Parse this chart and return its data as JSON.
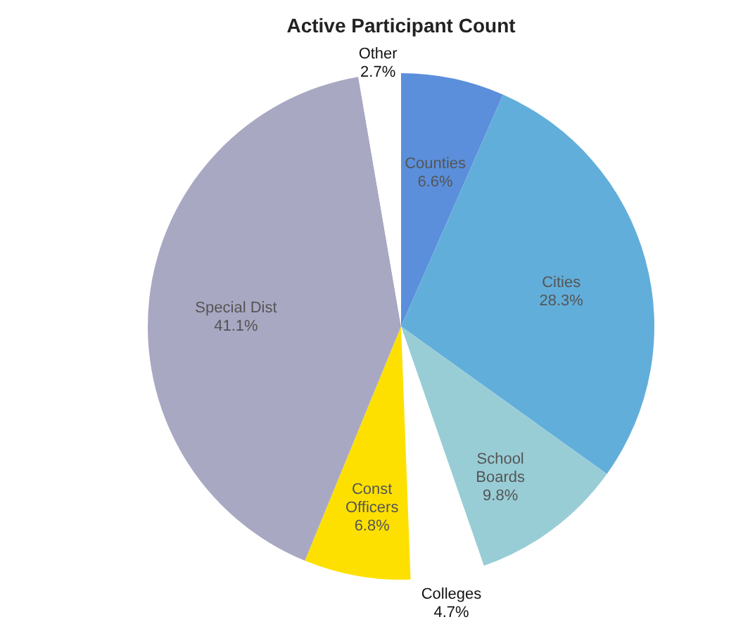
{
  "chart_data": {
    "type": "pie",
    "title": "Active Participant Count",
    "categories": [
      "Counties",
      "Cities",
      "School Boards",
      "Colleges",
      "Const Officers",
      "Special Dist",
      "Other"
    ],
    "values": [
      6.6,
      28.3,
      9.8,
      4.7,
      6.8,
      41.1,
      2.7
    ],
    "value_labels": [
      "6.6%",
      "28.3%",
      "9.8%",
      "4.7%",
      "6.8%",
      "41.1%",
      "2.7%"
    ],
    "colors": [
      "#5b8fdc",
      "#62aedb",
      "#99cdd6",
      "#ffffff",
      "#fde000",
      "#a9a8c3",
      "#ffffff"
    ],
    "legend": false
  }
}
